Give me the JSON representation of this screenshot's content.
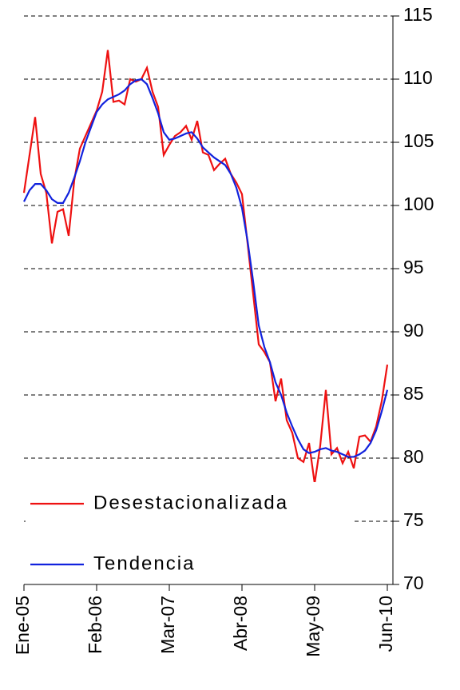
{
  "chart_data": {
    "type": "line",
    "categories": [
      "Ene-05",
      null,
      null,
      null,
      null,
      null,
      null,
      null,
      null,
      null,
      null,
      null,
      null,
      "Feb-06",
      null,
      null,
      null,
      null,
      null,
      null,
      null,
      null,
      null,
      null,
      null,
      null,
      "Mar-07",
      null,
      null,
      null,
      null,
      null,
      null,
      null,
      null,
      null,
      null,
      null,
      null,
      "Abr-08",
      null,
      null,
      null,
      null,
      null,
      null,
      null,
      null,
      null,
      null,
      null,
      null,
      "May-09",
      null,
      null,
      null,
      null,
      null,
      null,
      null,
      null,
      null,
      null,
      null,
      null,
      "Jun-10"
    ],
    "series": [
      {
        "name": "Desestacionalizada",
        "color": "#ee1111",
        "values": [
          101,
          104,
          107,
          102.5,
          101,
          97,
          99.5,
          99.7,
          97.6,
          102,
          104.5,
          105.5,
          106.5,
          107.5,
          109,
          112.3,
          108.2,
          108.3,
          108,
          110,
          109.8,
          110,
          110.9,
          109,
          107.8,
          104,
          104.8,
          105.5,
          105.8,
          106.3,
          105.2,
          106.7,
          104.2,
          104,
          102.8,
          103.3,
          103.7,
          102.5,
          101.8,
          100.9,
          97,
          93,
          89,
          88.4,
          87.6,
          84.5,
          86.3,
          83,
          82,
          80,
          79.7,
          81.2,
          78,
          81,
          85.4,
          80.3,
          80.8,
          79.6,
          80.5,
          79.2,
          81.7,
          81.8,
          81.3,
          82.5,
          84.5,
          87.4
        ]
      },
      {
        "name": "Tendencia",
        "color": "#1122dd",
        "values": [
          100.3,
          101.2,
          101.7,
          101.7,
          101.2,
          100.5,
          100.2,
          100.2,
          101,
          102.2,
          103.5,
          105,
          106.2,
          107.4,
          108,
          108.4,
          108.6,
          108.8,
          109.1,
          109.6,
          109.9,
          110,
          109.6,
          108.5,
          107.3,
          105.8,
          105.2,
          105.3,
          105.5,
          105.7,
          105.8,
          105.3,
          104.6,
          104.2,
          103.8,
          103.5,
          103.2,
          102.5,
          101.4,
          99.8,
          97.2,
          94,
          90.5,
          88.8,
          87.6,
          86,
          85,
          83.6,
          82.5,
          81.5,
          80.7,
          80.4,
          80.5,
          80.7,
          80.8,
          80.6,
          80.5,
          80.3,
          80.1,
          80.1,
          80.3,
          80.6,
          81.2,
          82.2,
          83.7,
          85.4
        ]
      }
    ],
    "ylim": [
      70,
      115
    ],
    "yticks": [
      70,
      75,
      80,
      85,
      90,
      95,
      100,
      105,
      110,
      115
    ],
    "grid": true
  }
}
